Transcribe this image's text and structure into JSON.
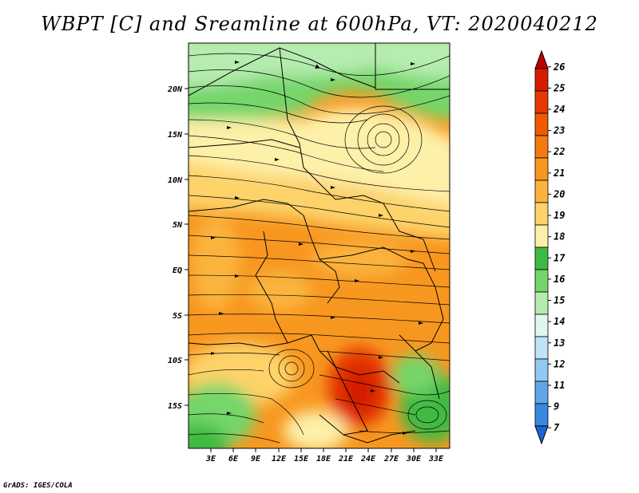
{
  "title": "WBPT [C] and Sreamline at 600hPa, VT: 2020040212",
  "credit": "GrADS: IGES/COLA",
  "map": {
    "lat_labels": [
      "20N",
      "15N",
      "10N",
      "5N",
      "EQ",
      "5S",
      "10S",
      "15S"
    ],
    "lon_labels": [
      "3E",
      "6E",
      "9E",
      "12E",
      "15E",
      "18E",
      "21E",
      "24E",
      "27E",
      "30E",
      "33E"
    ]
  },
  "colorbar": {
    "labels": [
      "26",
      "25",
      "24",
      "23",
      "22",
      "21",
      "20",
      "19",
      "18",
      "17",
      "16",
      "15",
      "14",
      "13",
      "12",
      "11",
      "9",
      "7"
    ],
    "colors": [
      "#c00000",
      "#d51d00",
      "#e53900",
      "#f05a00",
      "#f47a10",
      "#f8971f",
      "#fab43c",
      "#fdd36a",
      "#fdf0a8",
      "#3fba42",
      "#74d66a",
      "#b5ecaf",
      "#e0f7f0",
      "#bfe3f7",
      "#91c9f0",
      "#5ea7e7",
      "#3a88df",
      "#1c64d6"
    ]
  }
}
